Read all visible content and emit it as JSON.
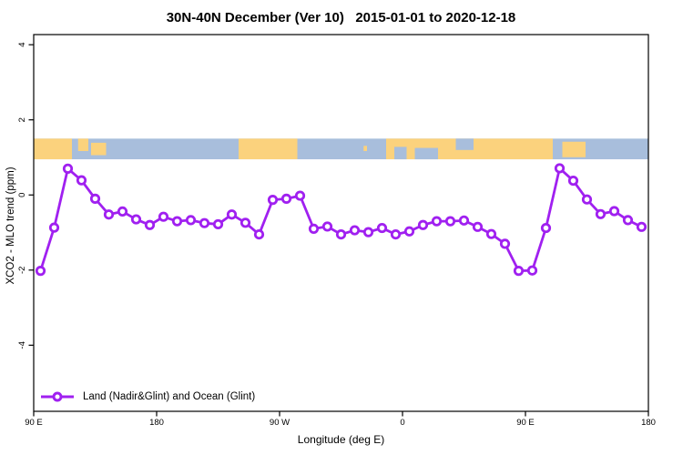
{
  "title": "30N-40N December (Ver 10)   2015-01-01 to 2020-12-18",
  "legend": {
    "label": "Land (Nadir&Glint) and Ocean (Glint)",
    "marker": "open-circle-on-line",
    "color": "#A020F0"
  },
  "chart_data": {
    "type": "line",
    "title": "30N-40N December (Ver 10)   2015-01-01 to 2020-12-18",
    "xlabel": "Longitude (deg E)",
    "ylabel": "XCO2 - MLO trend (ppm)",
    "xlim": [
      90,
      540
    ],
    "ylim": [
      -5.76,
      4.27
    ],
    "grid": false,
    "legend_position": "bottom-left-inside",
    "x_ticks": [
      {
        "u": 90,
        "label": "90 E"
      },
      {
        "u": 180,
        "label": "180"
      },
      {
        "u": 270,
        "label": "90 W"
      },
      {
        "u": 360,
        "label": "0"
      },
      {
        "u": 450,
        "label": "90 E"
      },
      {
        "u": 540,
        "label": "180"
      }
    ],
    "y_ticks": [
      4,
      2,
      0,
      -2,
      -4
    ],
    "series": [
      {
        "name": "Land (Nadir&Glint) and Ocean (Glint)",
        "color": "#A020F0",
        "marker": "open-circle",
        "x": [
          95,
          105,
          115,
          125,
          135,
          145,
          155,
          165,
          175,
          185,
          195,
          205,
          215,
          225,
          235,
          245,
          255,
          265,
          275,
          285,
          295,
          305,
          315,
          325,
          335,
          345,
          355,
          365,
          375,
          385,
          395,
          405,
          415,
          425,
          435,
          445,
          455,
          465,
          475,
          485,
          495,
          505,
          515,
          525,
          535
        ],
        "y": [
          -2.02,
          -0.87,
          0.7,
          0.39,
          -0.1,
          -0.52,
          -0.44,
          -0.65,
          -0.8,
          -0.58,
          -0.7,
          -0.67,
          -0.75,
          -0.78,
          -0.52,
          -0.74,
          -1.05,
          -0.13,
          -0.1,
          -0.02,
          -0.9,
          -0.84,
          -1.05,
          -0.94,
          -0.99,
          -0.88,
          -1.05,
          -0.97,
          -0.8,
          -0.7,
          -0.7,
          -0.68,
          -0.85,
          -1.04,
          -1.3,
          -2.02,
          -2.01,
          -0.88,
          0.71,
          0.38,
          -0.12,
          -0.51,
          -0.43,
          -0.67,
          -0.85
        ]
      }
    ],
    "map_band": {
      "y_from": 0.95,
      "y_to": 1.5,
      "ocean_color": "#A8BEDC",
      "land_color": "#FBD27D",
      "land_segments": [
        {
          "name": "east-asia",
          "u0": 90,
          "u1": 118,
          "top": 0,
          "bot": 1
        },
        {
          "name": "korea",
          "u0": 122.5,
          "u1": 130,
          "top": 0,
          "bot": 0.6
        },
        {
          "name": "japan",
          "u0": 132,
          "u1": 143,
          "top": 0.2,
          "bot": 0.8
        },
        {
          "name": "north-america",
          "u0": 240,
          "u1": 283,
          "top": 0,
          "bot": 1
        },
        {
          "name": "azores",
          "u0": 331.5,
          "u1": 334,
          "top": 0.35,
          "bot": 0.6
        },
        {
          "name": "eurasia",
          "u0": 348,
          "u1": 470,
          "top": 0,
          "bot": 1
        },
        {
          "name": "japan-2",
          "u0": 477,
          "u1": 494,
          "top": 0.15,
          "bot": 0.9
        }
      ],
      "water_holes": [
        {
          "name": "west-mediterranean",
          "u0": 354,
          "u1": 363,
          "top": 0.4,
          "bot": 1
        },
        {
          "name": "east-mediterranean",
          "u0": 369,
          "u1": 386,
          "top": 0.45,
          "bot": 1
        },
        {
          "name": "black-caspian-sea",
          "u0": 399,
          "u1": 412,
          "top": 0,
          "bot": 0.55
        },
        {
          "name": "sea-of-japan",
          "u0": 470,
          "u1": 477,
          "top": 0.3,
          "bot": 1
        }
      ]
    }
  }
}
